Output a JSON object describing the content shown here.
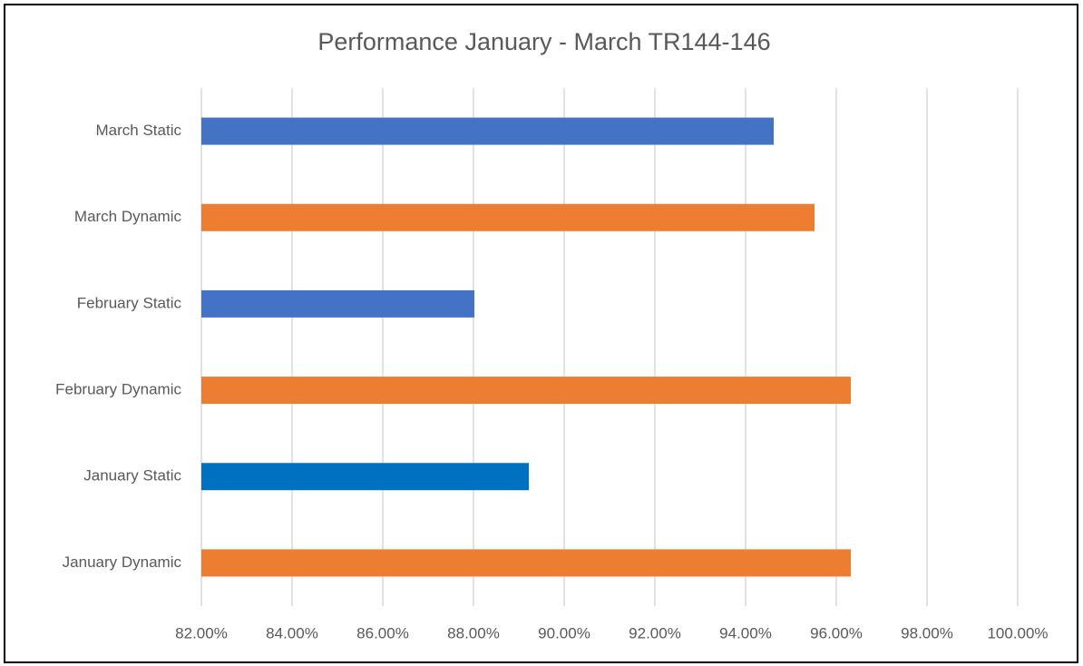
{
  "chart_data": {
    "type": "bar",
    "orientation": "horizontal",
    "title": "Performance January - March TR144-146",
    "categories": [
      "March Static",
      "March Dynamic",
      "February Static",
      "February Dynamic",
      "January  Static",
      "January Dynamic"
    ],
    "values": [
      94.62,
      95.52,
      88.02,
      96.32,
      89.22,
      96.32
    ],
    "colors": [
      "#4472c4",
      "#ed7d31",
      "#4472c4",
      "#ed7d31",
      "#0070c0",
      "#ed7d31"
    ],
    "xlim": [
      82,
      100
    ],
    "xticks": [
      {
        "value": 82,
        "label": "82.00%"
      },
      {
        "value": 84,
        "label": "84.00%"
      },
      {
        "value": 86,
        "label": "86.00%"
      },
      {
        "value": 88,
        "label": "88.00%"
      },
      {
        "value": 90,
        "label": "90.00%"
      },
      {
        "value": 92,
        "label": "92.00%"
      },
      {
        "value": 94,
        "label": "94.00%"
      },
      {
        "value": 96,
        "label": "96.00%"
      },
      {
        "value": 98,
        "label": "98.00%"
      },
      {
        "value": 100,
        "label": "100.00%"
      }
    ],
    "grid": true
  }
}
